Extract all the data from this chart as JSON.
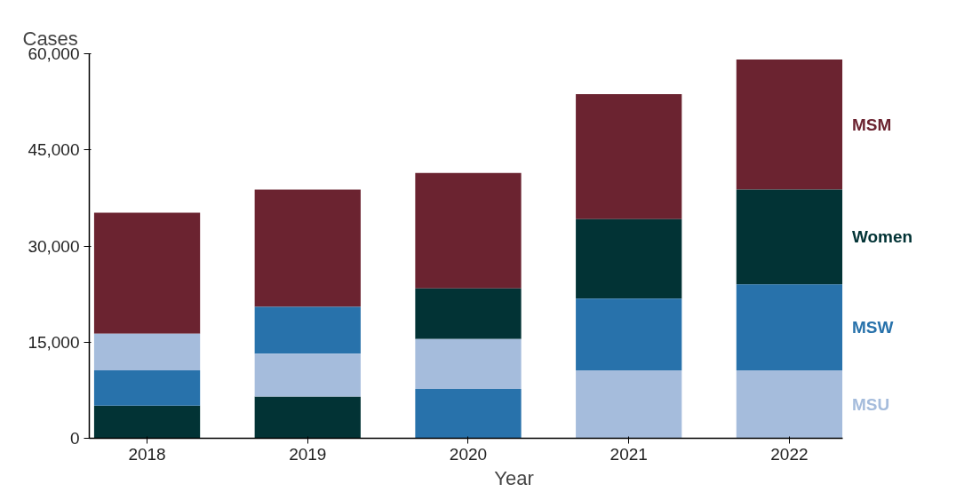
{
  "chart_data": {
    "type": "bar",
    "stacked": true,
    "xlabel": "Year",
    "ylabel": "Cases",
    "categories": [
      "2018",
      "2019",
      "2020",
      "2021",
      "2022"
    ],
    "ylim": [
      0,
      60000
    ],
    "yticks": [
      {
        "value": 0,
        "label": "0"
      },
      {
        "value": 15000,
        "label": "15,000"
      },
      {
        "value": 30000,
        "label": "30,000"
      },
      {
        "value": 45000,
        "label": "45,000"
      },
      {
        "value": 60000,
        "label": "60,000"
      }
    ],
    "grid": false,
    "series": [
      {
        "name": "MSM",
        "color": "#6b2330",
        "values": [
          18900,
          18300,
          18000,
          19500,
          20300
        ]
      },
      {
        "name": "Women",
        "color": "#023335",
        "values": [
          5100,
          6500,
          7900,
          12400,
          14800
        ]
      },
      {
        "name": "MSW",
        "color": "#2872ab",
        "values": [
          5500,
          7300,
          7700,
          11200,
          13400
        ]
      },
      {
        "name": "MSU",
        "color": "#a5bcdc",
        "values": [
          5700,
          6700,
          7800,
          10600,
          10600
        ]
      }
    ]
  }
}
